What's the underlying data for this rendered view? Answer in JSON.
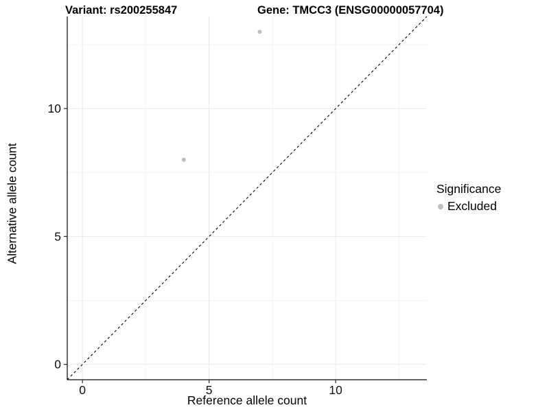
{
  "chart_data": {
    "type": "scatter",
    "title_left": "Variant: rs200255847",
    "title_right": "Gene: TMCC3 (ENSG00000057704)",
    "xlabel": "Reference allele count",
    "ylabel": "Alternative allele count",
    "xlim": [
      -0.6,
      13.6
    ],
    "ylim": [
      -0.6,
      13.6
    ],
    "xticks": [
      0,
      5,
      10
    ],
    "yticks": [
      0,
      5,
      10
    ],
    "minor_ticks": [
      2.5,
      7.5,
      12.5
    ],
    "grid": true,
    "background": "#ffffff",
    "axis_color": "#333333",
    "major_grid_color": "#e9e9e9",
    "minor_grid_color": "#f4f4f4",
    "identity_line": {
      "style": "dashed",
      "slope": 1,
      "intercept": 0,
      "color": "#000000"
    },
    "series": [
      {
        "name": "Excluded",
        "color": "#bebebe",
        "points": [
          {
            "x": 7,
            "y": 13
          },
          {
            "x": 4,
            "y": 8
          }
        ]
      }
    ],
    "legend": {
      "title": "Significance",
      "position": "right",
      "items": [
        {
          "label": "Excluded",
          "color": "#bebebe"
        }
      ]
    }
  }
}
